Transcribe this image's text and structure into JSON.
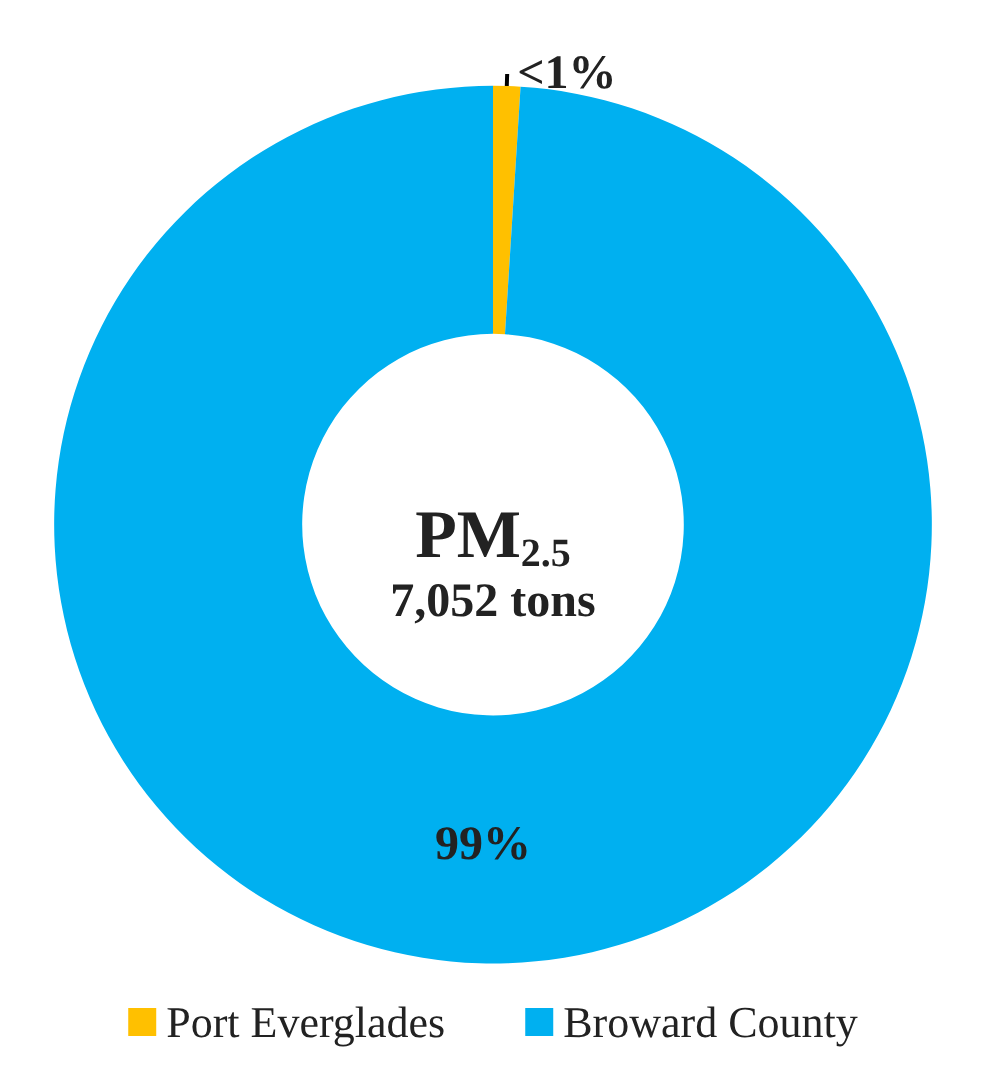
{
  "chart_data": {
    "type": "donut",
    "title": "PM$_{2.5}$",
    "subtitle": "7,052 tons",
    "categories": [
      "Port Everglades",
      "Broward County"
    ],
    "values": [
      1,
      99
    ],
    "colors": [
      "#ffc000",
      "#00b0f0"
    ],
    "value_labels": [
      "<1%",
      "99%"
    ],
    "legend": "bottom"
  }
}
